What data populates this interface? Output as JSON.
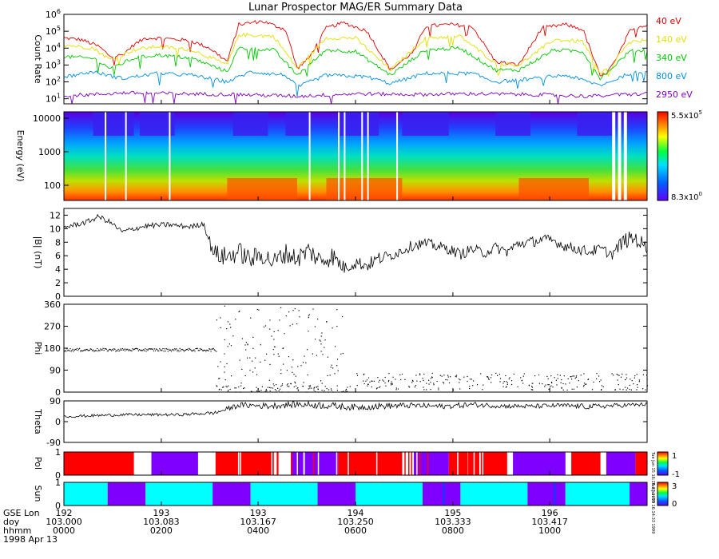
{
  "title": "Lunar Prospector MAG/ER Summary Data",
  "chart_data": [
    {
      "type": "line",
      "name": "count-rate",
      "ylabel": "Count Rate",
      "yscale": "log",
      "ylim_exp": [
        0.7,
        6
      ],
      "yticks": [
        {
          "exp": "1"
        },
        {
          "exp": "2"
        },
        {
          "exp": "3"
        },
        {
          "exp": "4"
        },
        {
          "exp": "5"
        },
        {
          "exp": "6"
        }
      ],
      "series": [
        {
          "name": "40 eV",
          "color": "#e00000",
          "x": [
            0,
            0.03,
            0.06,
            0.08,
            0.1,
            0.12,
            0.14,
            0.16,
            0.2,
            0.22,
            0.25,
            0.28,
            0.3,
            0.34,
            0.38,
            0.4,
            0.42,
            0.45,
            0.48,
            0.52,
            0.56,
            0.6,
            0.62,
            0.66,
            0.7,
            0.74,
            0.78,
            0.82,
            0.86,
            0.89,
            0.92,
            0.94,
            0.955,
            0.97,
            0.99,
            1
          ],
          "logy": [
            4.6,
            4.5,
            4.1,
            3.5,
            3.6,
            4.2,
            4.6,
            4.6,
            4.5,
            4.4,
            4.0,
            3.2,
            5.4,
            5.6,
            5.1,
            2.8,
            3.4,
            5.2,
            5.5,
            5.0,
            2.7,
            3.8,
            5.3,
            5.4,
            5.3,
            3.2,
            3.0,
            5.2,
            5.4,
            5.1,
            2.3,
            2.8,
            3.9,
            5.0,
            5.3,
            5.4
          ]
        },
        {
          "name": "140 eV",
          "color": "#e0e000",
          "x": [
            0,
            0.05,
            0.08,
            0.12,
            0.16,
            0.22,
            0.28,
            0.3,
            0.36,
            0.4,
            0.45,
            0.5,
            0.56,
            0.62,
            0.68,
            0.74,
            0.78,
            0.84,
            0.89,
            0.92,
            0.97,
            1
          ],
          "logy": [
            4.2,
            4.0,
            3.3,
            3.9,
            4.1,
            3.9,
            3.0,
            4.8,
            4.7,
            2.8,
            4.6,
            4.6,
            2.7,
            4.6,
            4.7,
            3.1,
            3.0,
            4.5,
            4.4,
            2.4,
            4.3,
            4.5
          ]
        },
        {
          "name": "340 eV",
          "color": "#00c800",
          "x": [
            0,
            0.05,
            0.08,
            0.12,
            0.16,
            0.22,
            0.28,
            0.3,
            0.36,
            0.4,
            0.45,
            0.5,
            0.56,
            0.62,
            0.68,
            0.74,
            0.78,
            0.84,
            0.89,
            0.92,
            0.97,
            1
          ],
          "logy": [
            3.5,
            3.4,
            2.8,
            3.4,
            3.6,
            3.4,
            2.6,
            4.0,
            3.9,
            2.4,
            3.9,
            3.8,
            2.4,
            3.9,
            4.0,
            2.7,
            2.7,
            3.9,
            3.8,
            2.2,
            3.8,
            3.9
          ]
        },
        {
          "name": "800 eV",
          "color": "#0090e0",
          "x": [
            0,
            0.05,
            0.1,
            0.16,
            0.22,
            0.28,
            0.32,
            0.38,
            0.4,
            0.45,
            0.52,
            0.56,
            0.62,
            0.7,
            0.74,
            0.78,
            0.86,
            0.92,
            0.97,
            1
          ],
          "logy": [
            2.3,
            2.6,
            2.2,
            2.5,
            2.4,
            2.0,
            2.6,
            2.4,
            1.7,
            2.4,
            2.3,
            1.9,
            2.5,
            2.5,
            2.0,
            2.1,
            2.4,
            1.8,
            2.5,
            2.6
          ]
        },
        {
          "name": "2950 eV",
          "color": "#8000c0",
          "x": [
            0,
            0.05,
            0.1,
            0.2,
            0.3,
            0.4,
            0.5,
            0.6,
            0.7,
            0.8,
            0.9,
            1
          ],
          "logy": [
            1.2,
            1.25,
            1.35,
            1.3,
            1.25,
            1.15,
            1.3,
            1.25,
            1.3,
            1.25,
            1.15,
            1.3
          ]
        }
      ]
    },
    {
      "type": "heatmap",
      "name": "energy-spectrogram",
      "ylabel": "Energy (eV)",
      "yticks": [
        "10000",
        "1000",
        "100"
      ],
      "colorbar": {
        "max_mant": "5.5x10",
        "max_exp": "5",
        "min_mant": "8.3x10",
        "min_exp": "0"
      }
    },
    {
      "type": "line",
      "name": "field-magnitude",
      "ylabel": "|B| (nT)",
      "ylim": [
        0,
        13
      ],
      "yticks": [
        "0",
        "2",
        "4",
        "6",
        "8",
        "10",
        "12"
      ],
      "x": [
        0,
        0.02,
        0.04,
        0.06,
        0.08,
        0.1,
        0.12,
        0.14,
        0.16,
        0.18,
        0.2,
        0.22,
        0.24,
        0.25,
        0.26,
        0.28,
        0.3,
        0.32,
        0.34,
        0.36,
        0.38,
        0.4,
        0.42,
        0.44,
        0.46,
        0.48,
        0.5,
        0.52,
        0.54,
        0.56,
        0.58,
        0.6,
        0.62,
        0.64,
        0.66,
        0.68,
        0.7,
        0.72,
        0.74,
        0.76,
        0.78,
        0.8,
        0.82,
        0.84,
        0.86,
        0.88,
        0.9,
        0.92,
        0.94,
        0.96,
        0.98,
        1
      ],
      "y": [
        10.2,
        10.6,
        11.0,
        11.8,
        10.9,
        9.5,
        10.0,
        10.4,
        10.5,
        10.6,
        10.4,
        10.3,
        10.8,
        8.0,
        6.2,
        5.8,
        6.6,
        5.4,
        6.2,
        5.0,
        6.4,
        5.6,
        6.8,
        5.2,
        6.0,
        4.2,
        5.0,
        4.6,
        5.6,
        6.0,
        6.8,
        7.6,
        7.8,
        7.4,
        7.0,
        6.2,
        7.0,
        6.4,
        7.2,
        6.6,
        7.8,
        8.0,
        8.4,
        8.2,
        7.4,
        7.0,
        6.6,
        7.0,
        6.2,
        8.2,
        8.6,
        7.0
      ],
      "noise": [
        0.4,
        0.4,
        0.4,
        0.4,
        0.4,
        0.4,
        0.4,
        0.4,
        0.4,
        0.4,
        0.4,
        0.4,
        0.4,
        1.0,
        1.5,
        1.5,
        1.5,
        1.5,
        1.5,
        1.5,
        1.5,
        1.5,
        1.5,
        1.5,
        1.5,
        1.0,
        1.0,
        1.0,
        1.0,
        0.8,
        0.8,
        0.8,
        0.8,
        0.8,
        0.8,
        0.8,
        0.8,
        0.8,
        0.8,
        0.8,
        0.8,
        0.8,
        0.8,
        0.8,
        0.8,
        0.8,
        0.8,
        0.8,
        0.8,
        1.2,
        1.2,
        1.2
      ]
    },
    {
      "type": "scatter",
      "name": "phi",
      "ylabel": "Phi",
      "ylim": [
        0,
        360
      ],
      "yticks": [
        "0",
        "90",
        "180",
        "270",
        "360"
      ],
      "clusters": [
        {
          "x0": 0,
          "x1": 0.26,
          "yc": 175,
          "spread": 6,
          "n": 180
        },
        {
          "x0": 0.26,
          "x1": 0.48,
          "yc": 180,
          "spread": 175,
          "n": 160
        },
        {
          "x0": 0.26,
          "x1": 0.5,
          "yc": 15,
          "spread": 15,
          "n": 90
        },
        {
          "x0": 0.5,
          "x1": 1,
          "yc": 45,
          "spread": 35,
          "n": 260
        }
      ]
    },
    {
      "type": "line",
      "name": "theta",
      "ylabel": "Theta",
      "ylim": [
        -90,
        90
      ],
      "yticks": [
        "-90",
        "0",
        "90"
      ],
      "x": [
        0,
        0.1,
        0.2,
        0.26,
        0.3,
        0.35,
        0.4,
        0.45,
        0.5,
        0.55,
        0.6,
        0.65,
        0.7,
        0.75,
        0.8,
        0.85,
        0.9,
        0.95,
        1
      ],
      "y": [
        22,
        30,
        30,
        38,
        72,
        68,
        75,
        70,
        62,
        68,
        70,
        66,
        74,
        68,
        66,
        70,
        65,
        70,
        75
      ],
      "noise": [
        6,
        6,
        6,
        8,
        12,
        14,
        14,
        16,
        14,
        14,
        12,
        12,
        12,
        10,
        10,
        10,
        12,
        10,
        8
      ]
    },
    {
      "type": "table",
      "name": "pol-band",
      "ylabel": "Pol",
      "yticks": [
        "0",
        "1"
      ],
      "colorbar": {
        "top": "1",
        "bottom": "-1"
      },
      "segments": [
        {
          "x0": 0,
          "x1": 0.12,
          "c": "#ff0000"
        },
        {
          "x0": 0.15,
          "x1": 0.23,
          "c": "#8000ff"
        },
        {
          "x0": 0.26,
          "x1": 0.36,
          "c": "#ff0000"
        },
        {
          "x0": 0.39,
          "x1": 0.47,
          "c": "#8000ff"
        },
        {
          "x0": 0.47,
          "x1": 0.58,
          "c": "#ff0000"
        },
        {
          "x0": 0.6,
          "x1": 0.66,
          "c": "#8000ff"
        },
        {
          "x0": 0.66,
          "x1": 0.76,
          "c": "#ff0000"
        },
        {
          "x0": 0.77,
          "x1": 0.86,
          "c": "#8000ff"
        },
        {
          "x0": 0.87,
          "x1": 0.92,
          "c": "#ff0000"
        },
        {
          "x0": 0.93,
          "x1": 0.98,
          "c": "#8000ff"
        },
        {
          "x0": 0.98,
          "x1": 1,
          "c": "#ff0000"
        }
      ]
    },
    {
      "type": "table",
      "name": "sun-band",
      "ylabel": "Sun",
      "yticks": [
        "0",
        "1"
      ],
      "colorbar": {
        "top": "3",
        "bottom": "0"
      },
      "segments": [
        {
          "x0": 0,
          "x1": 0.075,
          "c": "#00ffff"
        },
        {
          "x0": 0.075,
          "x1": 0.14,
          "c": "#8000ff"
        },
        {
          "x0": 0.14,
          "x1": 0.255,
          "c": "#00ffff"
        },
        {
          "x0": 0.255,
          "x1": 0.32,
          "c": "#8000ff"
        },
        {
          "x0": 0.32,
          "x1": 0.435,
          "c": "#00ffff"
        },
        {
          "x0": 0.435,
          "x1": 0.5,
          "c": "#8000ff"
        },
        {
          "x0": 0.5,
          "x1": 0.615,
          "c": "#00ffff"
        },
        {
          "x0": 0.615,
          "x1": 0.68,
          "c": "#8000ff"
        },
        {
          "x0": 0.68,
          "x1": 0.795,
          "c": "#00ffff"
        },
        {
          "x0": 0.795,
          "x1": 0.86,
          "c": "#8000ff"
        },
        {
          "x0": 0.86,
          "x1": 0.97,
          "c": "#00ffff"
        },
        {
          "x0": 0.97,
          "x1": 1,
          "c": "#8000ff"
        }
      ]
    }
  ],
  "xaxis": {
    "row_labels": [
      "GSE Lon",
      "doy",
      "hhmm",
      "1998 Apr 13"
    ],
    "ticks": [
      {
        "x": 0,
        "lon": "192",
        "doy": "103.000",
        "hhmm": "0000"
      },
      {
        "x": 0.167,
        "lon": "193",
        "doy": "103.083",
        "hhmm": "0200"
      },
      {
        "x": 0.333,
        "lon": "193",
        "doy": "103.167",
        "hhmm": "0400"
      },
      {
        "x": 0.5,
        "lon": "194",
        "doy": "103.250",
        "hhmm": "0600"
      },
      {
        "x": 0.667,
        "lon": "195",
        "doy": "103.333",
        "hhmm": "0800"
      },
      {
        "x": 0.833,
        "lon": "196",
        "doy": "103.417",
        "hhmm": "1000"
      }
    ]
  },
  "side_text": {
    "rot1": "Tue Jun 15 16:14:33 1999",
    "rot2": "Tue Jun 15 16:14:33 1999"
  }
}
